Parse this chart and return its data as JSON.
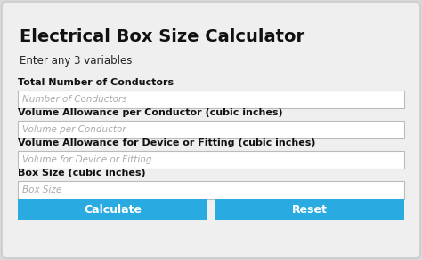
{
  "title": "Electrical Box Size Calculator",
  "subtitle": "Enter any 3 variables",
  "labels": [
    "Total Number of Conductors",
    "Volume Allowance per Conductor (cubic inches)",
    "Volume Allowance for Device or Fitting (cubic inches)",
    "Box Size (cubic inches)"
  ],
  "placeholders": [
    "Number of Conductors",
    "Volume per Conductor",
    "Volume for Device or Fitting",
    "Box Size"
  ],
  "buttons": [
    "Calculate",
    "Reset"
  ],
  "bg_color": "#d8d8d8",
  "panel_color": "#efefef",
  "input_bg": "#ffffff",
  "input_border": "#bbbbbb",
  "button_color": "#29abe2",
  "button_text_color": "#ffffff",
  "title_color": "#111111",
  "label_color": "#111111",
  "placeholder_color": "#aaaaaa",
  "subtitle_color": "#222222",
  "panel_edge_color": "#cccccc"
}
